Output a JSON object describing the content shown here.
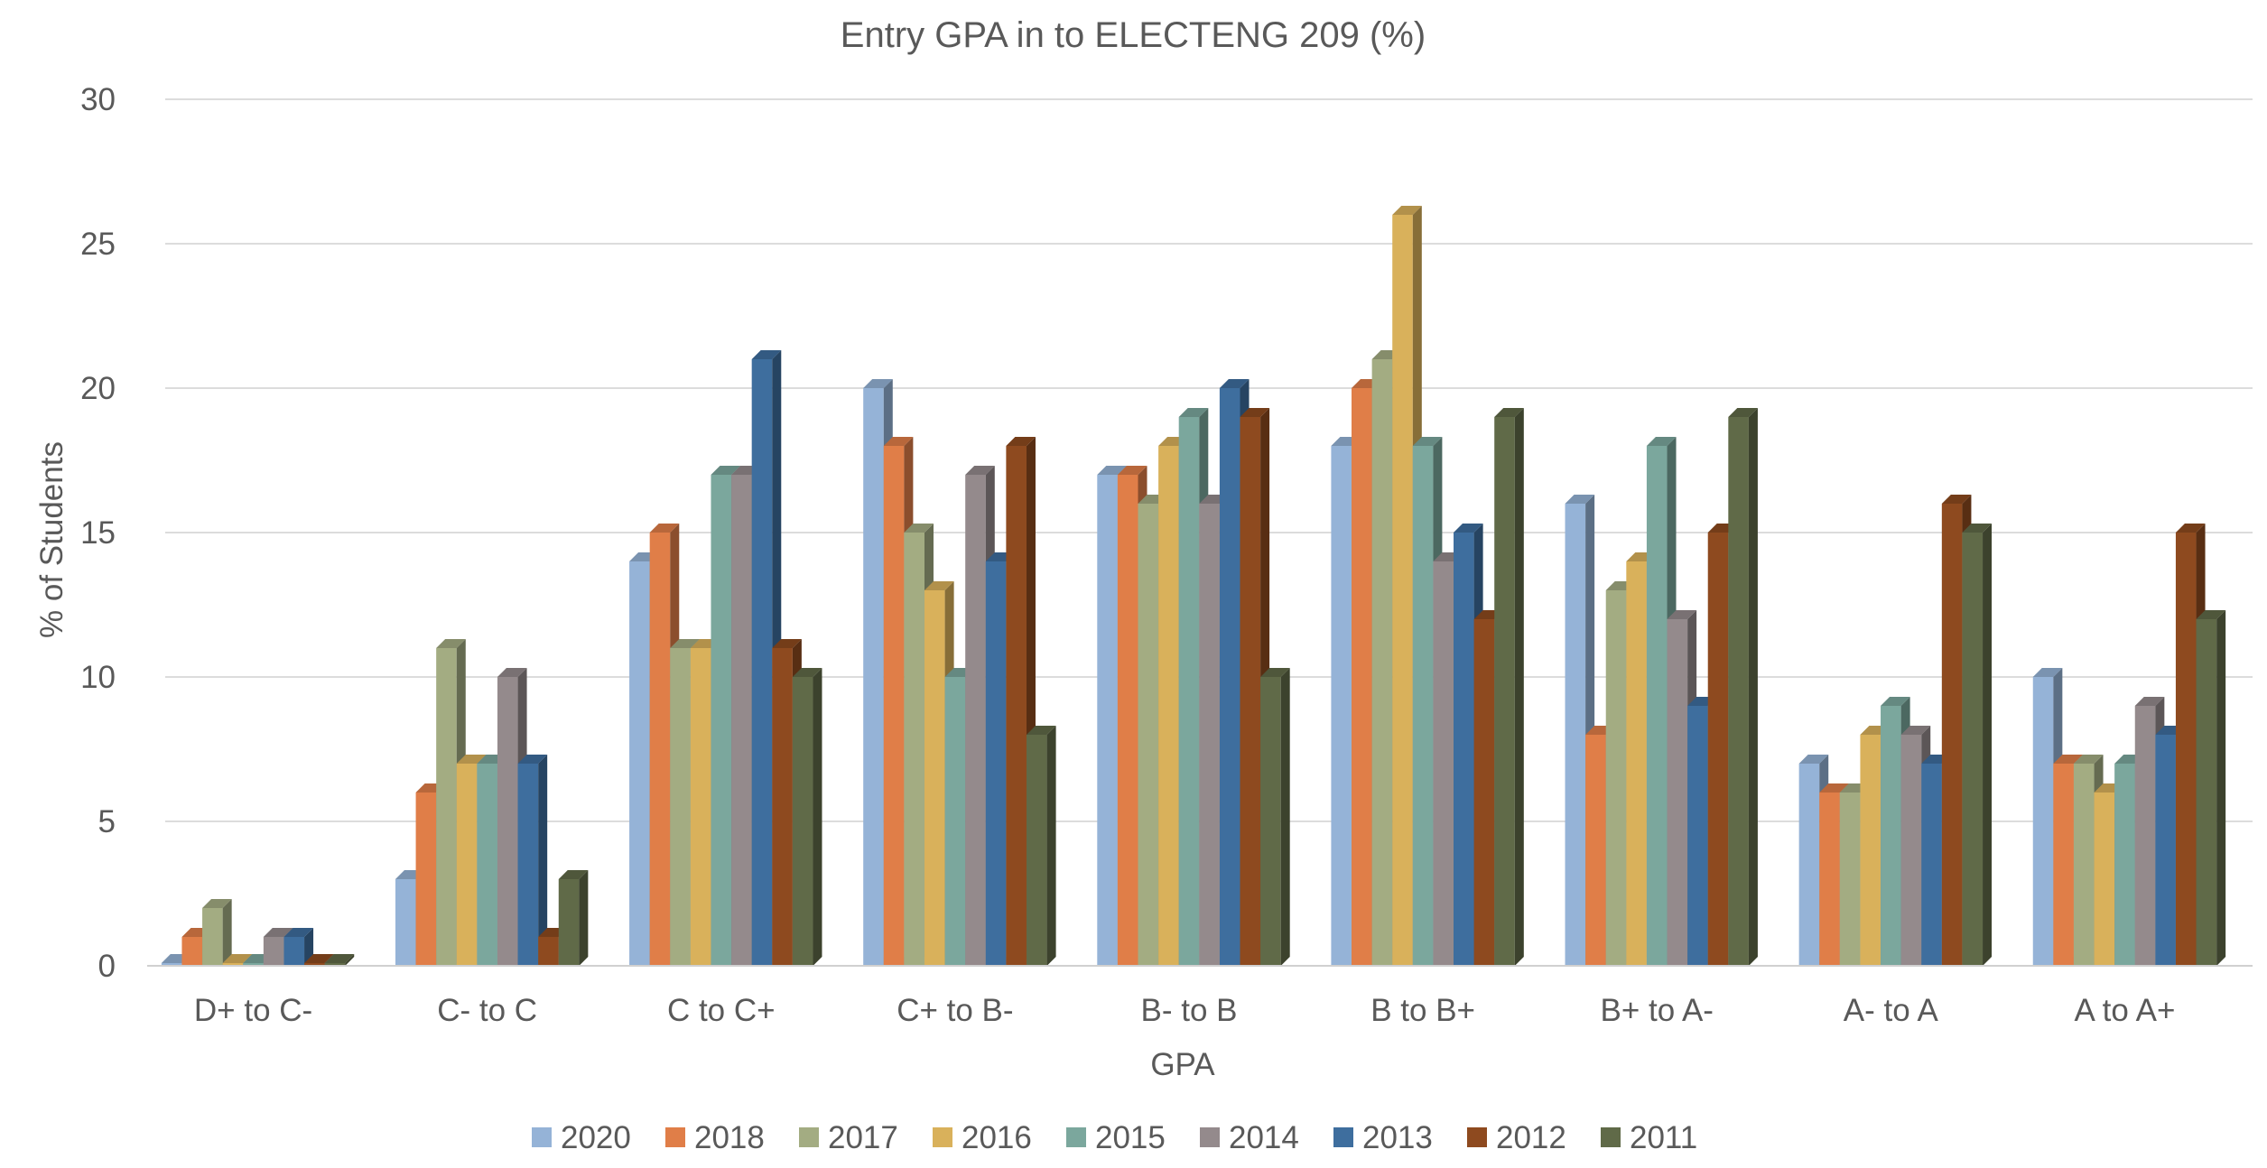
{
  "chart_data": {
    "type": "bar",
    "title": "Entry GPA in to ELECTENG 209  (%)",
    "xlabel": "GPA",
    "ylabel": "% of Students",
    "ylim": [
      0,
      30
    ],
    "yticks": [
      0,
      5,
      10,
      15,
      20,
      25,
      30
    ],
    "grid": true,
    "legend_position": "bottom",
    "categories": [
      "D+ to C-",
      "C- to C",
      "C to C+",
      "C+ to B-",
      "B- to B",
      "B to B+",
      "B+ to A-",
      "A- to A",
      "A to A+"
    ],
    "series": [
      {
        "name": "2020",
        "color": "#95B3D7",
        "values": [
          0,
          3,
          14,
          20,
          17,
          18,
          16,
          7,
          10
        ]
      },
      {
        "name": "2018",
        "color": "#E07E48",
        "values": [
          1,
          6,
          15,
          18,
          17,
          20,
          8,
          6,
          7
        ]
      },
      {
        "name": "2017",
        "color": "#A3AC82",
        "values": [
          2,
          11,
          11,
          15,
          16,
          21,
          13,
          6,
          7
        ]
      },
      {
        "name": "2016",
        "color": "#D9B15B",
        "values": [
          0,
          7,
          11,
          13,
          18,
          26,
          14,
          8,
          6
        ]
      },
      {
        "name": "2015",
        "color": "#7BA79D",
        "values": [
          0,
          7,
          17,
          10,
          19,
          18,
          18,
          9,
          7
        ]
      },
      {
        "name": "2014",
        "color": "#948A8C",
        "values": [
          1,
          10,
          17,
          17,
          16,
          14,
          12,
          8,
          9
        ]
      },
      {
        "name": "2013",
        "color": "#3E6E9E",
        "values": [
          1,
          7,
          21,
          14,
          20,
          15,
          9,
          7,
          8
        ]
      },
      {
        "name": "2012",
        "color": "#8E4A1F",
        "values": [
          0,
          1,
          11,
          18,
          19,
          12,
          15,
          16,
          15
        ]
      },
      {
        "name": "2011",
        "color": "#606A48",
        "values": [
          0,
          3,
          10,
          8,
          10,
          19,
          19,
          15,
          12
        ]
      }
    ]
  }
}
